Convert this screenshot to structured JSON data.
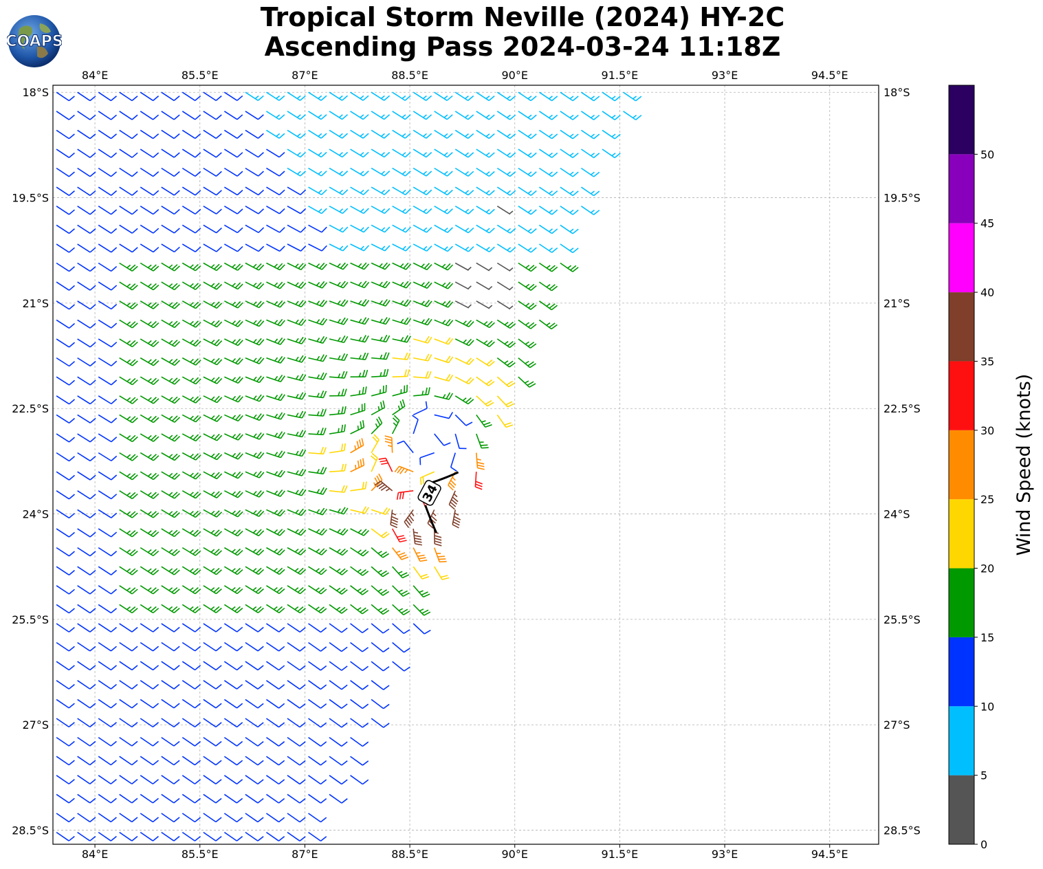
{
  "title": {
    "line1": "Tropical Storm Neville (2024) HY-2C",
    "line2": "Ascending Pass 2024-03-24 11:18Z"
  },
  "logo": {
    "text": "COAPS",
    "icon": "globe-icon"
  },
  "map": {
    "lon_range": [
      83.4,
      95.2
    ],
    "lat_range": [
      -28.7,
      -17.9
    ],
    "lon_ticks": [
      {
        "value": 84,
        "label": "84°E"
      },
      {
        "value": 85.5,
        "label": "85.5°E"
      },
      {
        "value": 87,
        "label": "87°E"
      },
      {
        "value": 88.5,
        "label": "88.5°E"
      },
      {
        "value": 90,
        "label": "90°E"
      },
      {
        "value": 91.5,
        "label": "91.5°E"
      },
      {
        "value": 93,
        "label": "93°E"
      },
      {
        "value": 94.5,
        "label": "94.5°E"
      }
    ],
    "lat_ticks": [
      {
        "value": -18,
        "label": "18°S"
      },
      {
        "value": -19.5,
        "label": "19.5°S"
      },
      {
        "value": -21,
        "label": "21°S"
      },
      {
        "value": -22.5,
        "label": "22.5°S"
      },
      {
        "value": -24,
        "label": "24°S"
      },
      {
        "value": -25.5,
        "label": "25.5°S"
      },
      {
        "value": -27,
        "label": "27°S"
      },
      {
        "value": -28.5,
        "label": "28.5°S"
      }
    ],
    "grid": true,
    "swath_east_edge": [
      [
        91.7,
        -17.9
      ],
      [
        90.0,
        -22.2
      ],
      [
        88.9,
        -24.7
      ],
      [
        87.8,
        -27.5
      ],
      [
        87.0,
        -28.7
      ]
    ],
    "storm_center": {
      "lon": 88.8,
      "lat": -22.9
    },
    "wind_radius_marker": {
      "label": "34",
      "lon": 88.78,
      "lat": -23.7
    }
  },
  "colorbar": {
    "label": "Wind Speed (knots)",
    "ticks": [
      "0",
      "5",
      "10",
      "15",
      "20",
      "25",
      "30",
      "35",
      "40",
      "45",
      "50"
    ],
    "bins": [
      {
        "from": 0,
        "to": 5,
        "color": "#555555"
      },
      {
        "from": 5,
        "to": 10,
        "color": "#00bfff"
      },
      {
        "from": 10,
        "to": 15,
        "color": "#0033ff"
      },
      {
        "from": 15,
        "to": 20,
        "color": "#009900"
      },
      {
        "from": 20,
        "to": 25,
        "color": "#ffd700"
      },
      {
        "from": 25,
        "to": 30,
        "color": "#ff8c00"
      },
      {
        "from": 30,
        "to": 35,
        "color": "#ff1010"
      },
      {
        "from": 35,
        "to": 40,
        "color": "#7f3f2a"
      },
      {
        "from": 40,
        "to": 45,
        "color": "#ff00ff"
      },
      {
        "from": 45,
        "to": 50,
        "color": "#8800bb"
      },
      {
        "from": 50,
        "to": 55,
        "color": "#2b0060"
      }
    ]
  }
}
